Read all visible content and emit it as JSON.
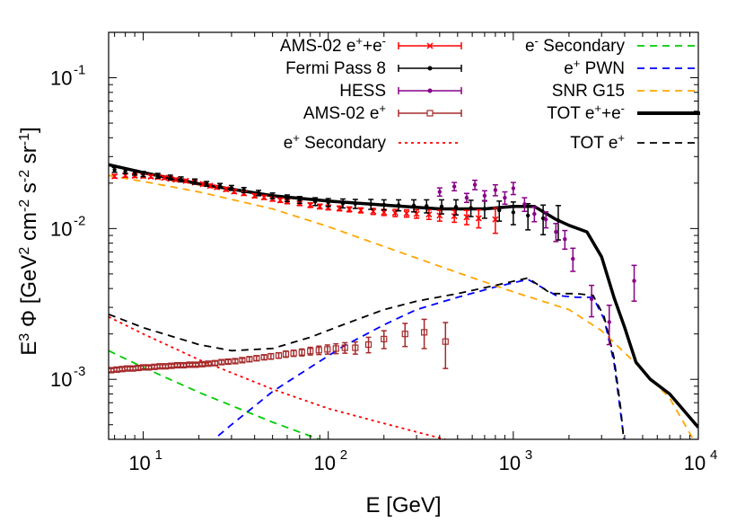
{
  "chart_data": {
    "type": "line",
    "xscale": "log",
    "yscale": "log",
    "xlim": [
      6.5,
      10000
    ],
    "ylim": [
      0.0004,
      0.2
    ],
    "xlabel": "E [GeV]",
    "ylabel": "E^3 Φ [GeV^2 cm^-2 s^-2 sr^-1]",
    "x_tick_labels": [
      "10",
      "10",
      "10",
      "10"
    ],
    "x_tick_exponents": [
      "1",
      "2",
      "3",
      "4"
    ],
    "y_tick_labels": [
      "10",
      "10",
      "10"
    ],
    "y_tick_exponents": [
      "-3",
      "-2",
      "-1"
    ],
    "colors": {
      "ams_all": "#ff0000",
      "fermi": "#000000",
      "hess": "#880088",
      "ams_pos": "#a52a2a",
      "secondary_pos": "#ff0000",
      "secondary_ele": "#00cc00",
      "pwn": "#0000ff",
      "snr": "#ffa500",
      "tot_all": "#000000",
      "tot_pos": "#000000"
    },
    "legend": [
      {
        "id": "ams_all",
        "label": "AMS-02 e",
        "sup": "+",
        "label2": "+e",
        "sup2": "-",
        "style": "errorbar-x"
      },
      {
        "id": "fermi",
        "label": "Fermi Pass 8",
        "sup": "",
        "label2": "",
        "sup2": "",
        "style": "errorbar-dot"
      },
      {
        "id": "hess",
        "label": "HESS",
        "sup": "",
        "label2": "",
        "sup2": "",
        "style": "errorbar-dot"
      },
      {
        "id": "ams_pos",
        "label": "AMS-02 e",
        "sup": "+",
        "label2": "",
        "sup2": "",
        "style": "errorbar-box"
      },
      {
        "id": "secondary_pos",
        "label": "e",
        "sup": "+",
        "label2": " Secondary",
        "sup2": "",
        "style": "dotted"
      },
      {
        "id": "secondary_ele",
        "label": "e",
        "sup": "-",
        "label2": " Secondary",
        "sup2": "",
        "style": "dashed"
      },
      {
        "id": "pwn",
        "label": "e",
        "sup": "+",
        "label2": " PWN",
        "sup2": "",
        "style": "dashed"
      },
      {
        "id": "snr",
        "label": "SNR G15",
        "sup": "",
        "label2": "",
        "sup2": "",
        "style": "dashed"
      },
      {
        "id": "tot_all",
        "label": "TOT e",
        "sup": "+",
        "label2": "+e",
        "sup2": "-",
        "style": "thick"
      },
      {
        "id": "tot_pos",
        "label": "TOT e",
        "sup": "+",
        "label2": "",
        "sup2": "",
        "style": "dashed"
      }
    ],
    "series": [
      {
        "id": "secondary_pos",
        "name": "e+ Secondary",
        "x": [
          6.5,
          10,
          20,
          50,
          100,
          200,
          500,
          1000
        ],
        "y": [
          0.0026,
          0.002,
          0.00135,
          0.00086,
          0.00064,
          0.00051,
          0.00038,
          0.0003
        ]
      },
      {
        "id": "secondary_ele",
        "name": "e- Secondary",
        "x": [
          6.5,
          10,
          20,
          50,
          100,
          200
        ],
        "y": [
          0.00155,
          0.0012,
          0.00082,
          0.00052,
          0.00038,
          0.00029
        ]
      },
      {
        "id": "pwn",
        "name": "e+ PWN",
        "x": [
          20,
          30,
          50,
          80,
          120,
          200,
          300,
          500,
          800,
          1200,
          1700,
          2200,
          2700,
          3100,
          3500,
          3900,
          4300
        ],
        "y": [
          0.00033,
          0.0005,
          0.00083,
          0.0012,
          0.00165,
          0.0023,
          0.0029,
          0.0035,
          0.0041,
          0.0046,
          0.0036,
          0.0035,
          0.0035,
          0.0025,
          0.0013,
          0.00047,
          0.0002
        ]
      },
      {
        "id": "snr",
        "name": "SNR G15",
        "x": [
          6.5,
          10,
          20,
          50,
          100,
          200,
          500,
          1000,
          2000,
          3000,
          4000,
          5000,
          7000,
          10000
        ],
        "y": [
          0.0225,
          0.0205,
          0.0175,
          0.0135,
          0.0103,
          0.0076,
          0.0051,
          0.0038,
          0.0029,
          0.0021,
          0.0015,
          0.00115,
          0.00075,
          0.00035
        ]
      },
      {
        "id": "tot_all",
        "name": "TOT e+e-",
        "x": [
          6.5,
          10,
          20,
          50,
          100,
          200,
          400,
          700,
          1000,
          1300,
          1700,
          2000,
          2500,
          3000,
          3500,
          4000,
          4600,
          5500,
          7000,
          10000
        ],
        "y": [
          0.0265,
          0.0235,
          0.0198,
          0.0165,
          0.0152,
          0.0143,
          0.0135,
          0.0135,
          0.014,
          0.014,
          0.0115,
          0.0105,
          0.0095,
          0.0065,
          0.0035,
          0.0022,
          0.0013,
          0.001,
          0.0008,
          0.00048
        ]
      },
      {
        "id": "tot_pos",
        "name": "TOT e+",
        "x": [
          6.5,
          10,
          20,
          30,
          50,
          80,
          120,
          200,
          300,
          500,
          800,
          1200,
          1600,
          2200,
          2700,
          3100,
          3500,
          3800,
          4100
        ],
        "y": [
          0.0027,
          0.0022,
          0.0017,
          0.00155,
          0.0016,
          0.0019,
          0.0023,
          0.0029,
          0.0033,
          0.0037,
          0.0042,
          0.0047,
          0.0037,
          0.0037,
          0.0036,
          0.0026,
          0.0014,
          0.00065,
          0.00025
        ]
      }
    ],
    "points": {
      "ams_all": {
        "x": [
          7,
          8,
          9,
          10,
          11,
          12,
          13,
          14,
          15,
          17,
          19,
          21,
          23,
          25,
          28,
          31,
          35,
          40,
          45,
          50,
          55,
          60,
          70,
          80,
          90,
          100,
          115,
          130,
          150,
          175,
          200,
          230,
          265,
          300,
          350,
          400,
          480,
          560,
          650,
          800
        ],
        "y": [
          0.0222,
          0.0225,
          0.0224,
          0.0223,
          0.0221,
          0.0219,
          0.0217,
          0.0214,
          0.0211,
          0.0207,
          0.0202,
          0.0197,
          0.0192,
          0.0188,
          0.0182,
          0.0176,
          0.0171,
          0.0165,
          0.0161,
          0.0157,
          0.0154,
          0.0151,
          0.0147,
          0.0143,
          0.014,
          0.0138,
          0.0136,
          0.0134,
          0.0132,
          0.013,
          0.0128,
          0.0127,
          0.0126,
          0.0125,
          0.0124,
          0.0122,
          0.0121,
          0.0119,
          0.0117,
          0.0115
        ],
        "yerr": [
          0.0006,
          0.0006,
          0.0006,
          0.0006,
          0.0005,
          0.0005,
          0.0005,
          0.0005,
          0.0005,
          0.0005,
          0.0005,
          0.0005,
          0.0005,
          0.0005,
          0.0005,
          0.0005,
          0.0005,
          0.0005,
          0.0005,
          0.0005,
          0.0005,
          0.0005,
          0.0005,
          0.0005,
          0.0005,
          0.0005,
          0.0005,
          0.0005,
          0.0005,
          0.0006,
          0.0006,
          0.0007,
          0.0007,
          0.0008,
          0.0009,
          0.001,
          0.0011,
          0.0013,
          0.0016,
          0.0022
        ]
      },
      "fermi": {
        "x": [
          7,
          8,
          9,
          10,
          12,
          14,
          16,
          19,
          22,
          26,
          30,
          35,
          42,
          50,
          60,
          70,
          85,
          100,
          120,
          140,
          170,
          200,
          240,
          290,
          340,
          410,
          490,
          590,
          700,
          840,
          1000,
          1200,
          1450,
          1750
        ],
        "y": [
          0.0245,
          0.024,
          0.0235,
          0.023,
          0.0224,
          0.0218,
          0.0212,
          0.0205,
          0.0198,
          0.0192,
          0.0186,
          0.018,
          0.0172,
          0.0165,
          0.0159,
          0.0155,
          0.0151,
          0.0149,
          0.0147,
          0.0146,
          0.0145,
          0.0144,
          0.0143,
          0.0142,
          0.0141,
          0.014,
          0.0139,
          0.0137,
          0.0135,
          0.0132,
          0.0128,
          0.0122,
          0.0117,
          0.0113
        ],
        "yerr": [
          0.0009,
          0.0009,
          0.0009,
          0.0009,
          0.0008,
          0.0008,
          0.0008,
          0.0008,
          0.0007,
          0.0007,
          0.0007,
          0.0007,
          0.0007,
          0.0007,
          0.0008,
          0.0008,
          0.0009,
          0.0009,
          0.001,
          0.001,
          0.0011,
          0.0011,
          0.0012,
          0.0013,
          0.0014,
          0.0015,
          0.0016,
          0.0017,
          0.0018,
          0.002,
          0.0022,
          0.0024,
          0.0026,
          0.0029
        ]
      },
      "hess": {
        "x": [
          400,
          480,
          560,
          620,
          700,
          800,
          900,
          1000,
          1150,
          1300,
          1500,
          1700,
          1900,
          2100,
          2650,
          3300,
          4500
        ],
        "y": [
          0.0175,
          0.019,
          0.016,
          0.0195,
          0.0165,
          0.018,
          0.016,
          0.0185,
          0.0145,
          0.0125,
          0.0115,
          0.0095,
          0.0085,
          0.0063,
          0.0034,
          0.0024,
          0.0045
        ],
        "yerr": [
          0.0011,
          0.0012,
          0.0011,
          0.0014,
          0.0013,
          0.0015,
          0.0015,
          0.0017,
          0.0015,
          0.0014,
          0.0014,
          0.0013,
          0.0012,
          0.0011,
          0.0008,
          0.0007,
          0.0012
        ]
      },
      "ams_pos": {
        "x": [
          6.7,
          7.2,
          7.7,
          8.2,
          8.8,
          9.4,
          10,
          10.7,
          11.5,
          12.3,
          13.2,
          14.2,
          15.3,
          16.5,
          17.8,
          19.2,
          20.8,
          22.5,
          24.4,
          26.5,
          28.8,
          31.4,
          34.3,
          37.5,
          41,
          45,
          49,
          54,
          59,
          65,
          72,
          80,
          89,
          99,
          110,
          123,
          140,
          165,
          200,
          260,
          330,
          430
        ],
        "y": [
          0.00115,
          0.00116,
          0.00117,
          0.00118,
          0.00118,
          0.00119,
          0.0012,
          0.0012,
          0.00121,
          0.00122,
          0.00122,
          0.00123,
          0.00124,
          0.00124,
          0.00125,
          0.00125,
          0.00126,
          0.00127,
          0.00128,
          0.0013,
          0.00131,
          0.00132,
          0.00134,
          0.00136,
          0.00138,
          0.0014,
          0.00142,
          0.00144,
          0.00147,
          0.00149,
          0.00151,
          0.00154,
          0.00156,
          0.00158,
          0.0016,
          0.00162,
          0.00162,
          0.0017,
          0.00185,
          0.002,
          0.00205,
          0.00178
        ],
        "yerr": [
          3e-05,
          3e-05,
          3e-05,
          3e-05,
          3e-05,
          3e-05,
          3e-05,
          3e-05,
          3e-05,
          3e-05,
          3e-05,
          3e-05,
          3e-05,
          3e-05,
          3e-05,
          3e-05,
          3e-05,
          3e-05,
          4e-05,
          4e-05,
          4e-05,
          4e-05,
          4e-05,
          5e-05,
          5e-05,
          5e-05,
          6e-05,
          6e-05,
          7e-05,
          7e-05,
          8e-05,
          9e-05,
          0.0001,
          0.00011,
          0.00012,
          0.00013,
          0.00015,
          0.0002,
          0.00025,
          0.00035,
          0.00045,
          0.0006
        ]
      }
    }
  }
}
